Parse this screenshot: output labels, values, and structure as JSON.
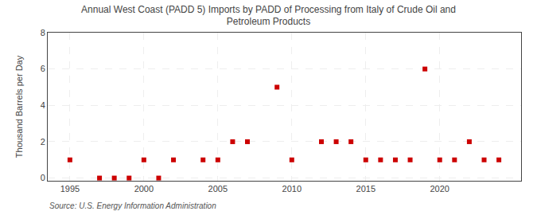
{
  "chart_data": {
    "type": "scatter",
    "title": "Annual West Coast (PADD 5) Imports by PADD of Processing from Italy of Crude Oil and\nPetroleum Products",
    "ylabel": "Thousand Barrels per Day",
    "annotations": [
      "Source: U.S. Energy Information Administration"
    ],
    "x": [
      1995,
      1997,
      1998,
      1999,
      2000,
      2001,
      2002,
      2004,
      2005,
      2006,
      2007,
      2009,
      2010,
      2012,
      2013,
      2014,
      2015,
      2016,
      2017,
      2018,
      2019,
      2020,
      2021,
      2022,
      2023,
      2024
    ],
    "values": [
      1,
      0,
      0,
      0,
      1,
      0,
      1,
      1,
      1,
      2,
      2,
      5,
      1,
      2,
      2,
      2,
      1,
      1,
      1,
      1,
      6,
      1,
      1,
      2,
      1,
      1
    ],
    "color": "#cc0000",
    "marker": "square",
    "xlim": [
      1993.5,
      2025.5
    ],
    "xticks": [
      1995,
      2000,
      2005,
      2010,
      2015,
      2020
    ],
    "ylim": [
      -0.15,
      8
    ],
    "yticks": [
      0,
      2,
      4,
      6,
      8
    ],
    "grid": true
  }
}
